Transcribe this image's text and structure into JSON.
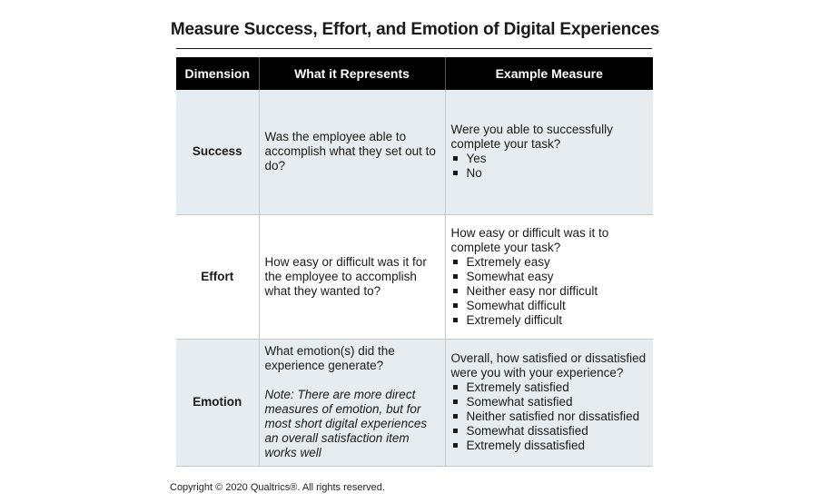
{
  "title": "Measure Success, Effort, and Emotion of Digital Experiences",
  "headers": {
    "dimension": "Dimension",
    "represents": "What it Represents",
    "measure": "Example Measure"
  },
  "rows": [
    {
      "dimension": "Success",
      "represents": "Was the employee able to accomplish what they set out to do?",
      "question": "Were you able to successfully complete your task?",
      "options": [
        "Yes",
        "No"
      ]
    },
    {
      "dimension": "Effort",
      "represents": "How easy or difficult was it for the employee to accomplish what they wanted to?",
      "question": "How easy or difficult was it to complete your task?",
      "options": [
        "Extremely easy",
        "Somewhat easy",
        "Neither easy nor difficult",
        "Somewhat difficult",
        "Extremely difficult"
      ]
    },
    {
      "dimension": "Emotion",
      "represents": "What emotion(s) did the experience generate?",
      "note": "Note: There are more direct measures of emotion, but for most short digital experiences an overall satisfaction item works well",
      "question": "Overall, how satisfied or dissatisfied were you with your experience?",
      "options": [
        "Extremely satisfied",
        "Somewhat satisfied",
        "Neither satisfied nor dissatisfied",
        "Somewhat dissatisfied",
        "Extremely dissatisfied"
      ]
    }
  ],
  "footer": "Copyright © 2020 Qualtrics®.  All rights reserved.",
  "colors": {
    "header_bg": "#000000",
    "shaded_row": "#e6ecef",
    "text": "#1a1a1a"
  }
}
